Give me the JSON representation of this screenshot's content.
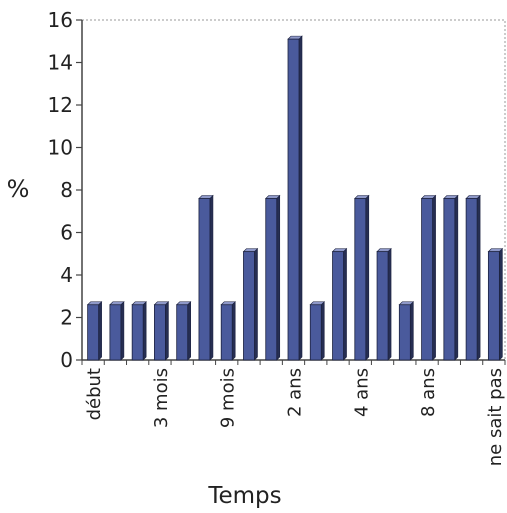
{
  "chart_data": {
    "type": "bar",
    "title": "",
    "xlabel": "Temps",
    "ylabel": "%",
    "ylim": [
      0,
      16
    ],
    "yticks": [
      0,
      2,
      4,
      6,
      8,
      10,
      12,
      14,
      16
    ],
    "grid": false,
    "legend": "none",
    "bar_color": "#4a5a9c",
    "categories": [
      "début",
      "",
      "",
      "3 mois",
      "",
      "",
      "9 mois",
      "",
      "",
      "2 ans",
      "",
      "",
      "4 ans",
      "",
      "",
      "8 ans",
      "",
      "",
      "ne sait pas"
    ],
    "values": [
      2.6,
      2.6,
      2.6,
      2.6,
      2.6,
      7.6,
      2.6,
      5.1,
      7.6,
      15.1,
      2.6,
      5.1,
      7.6,
      5.1,
      2.6,
      7.6,
      7.6,
      7.6,
      5.1
    ],
    "tick_labels": [
      {
        "index": 0,
        "label": "début"
      },
      {
        "index": 3,
        "label": "3 mois"
      },
      {
        "index": 6,
        "label": "9 mois"
      },
      {
        "index": 9,
        "label": "2 ans"
      },
      {
        "index": 12,
        "label": "4 ans"
      },
      {
        "index": 15,
        "label": "8 ans"
      },
      {
        "index": 18,
        "label": "ne sait pas"
      }
    ]
  }
}
